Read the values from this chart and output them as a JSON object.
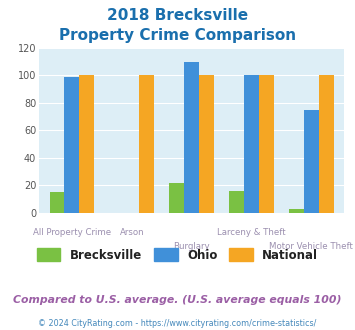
{
  "title_line1": "2018 Brecksville",
  "title_line2": "Property Crime Comparison",
  "title_color": "#1a6fad",
  "categories": [
    "All Property Crime",
    "Arson",
    "Burglary",
    "Larceny & Theft",
    "Motor Vehicle Theft"
  ],
  "brecksville": [
    15,
    0,
    22,
    16,
    3
  ],
  "ohio": [
    99,
    0,
    110,
    100,
    75
  ],
  "national": [
    100,
    100,
    100,
    100,
    100
  ],
  "brecksville_color": "#7ac143",
  "ohio_color": "#4090d9",
  "national_color": "#f5a623",
  "bar_width": 0.25,
  "ylim": [
    0,
    120
  ],
  "yticks": [
    0,
    20,
    40,
    60,
    80,
    100,
    120
  ],
  "bg_color": "#ddeef6",
  "fig_bg": "#ffffff",
  "footnote": "Compared to U.S. average. (U.S. average equals 100)",
  "footnote2": "© 2024 CityRating.com - https://www.cityrating.com/crime-statistics/",
  "footnote_color": "#9b5fa5",
  "footnote2_color": "#4488bb",
  "legend_labels": [
    "Brecksville",
    "Ohio",
    "National"
  ],
  "label_color": "#9b8faf"
}
